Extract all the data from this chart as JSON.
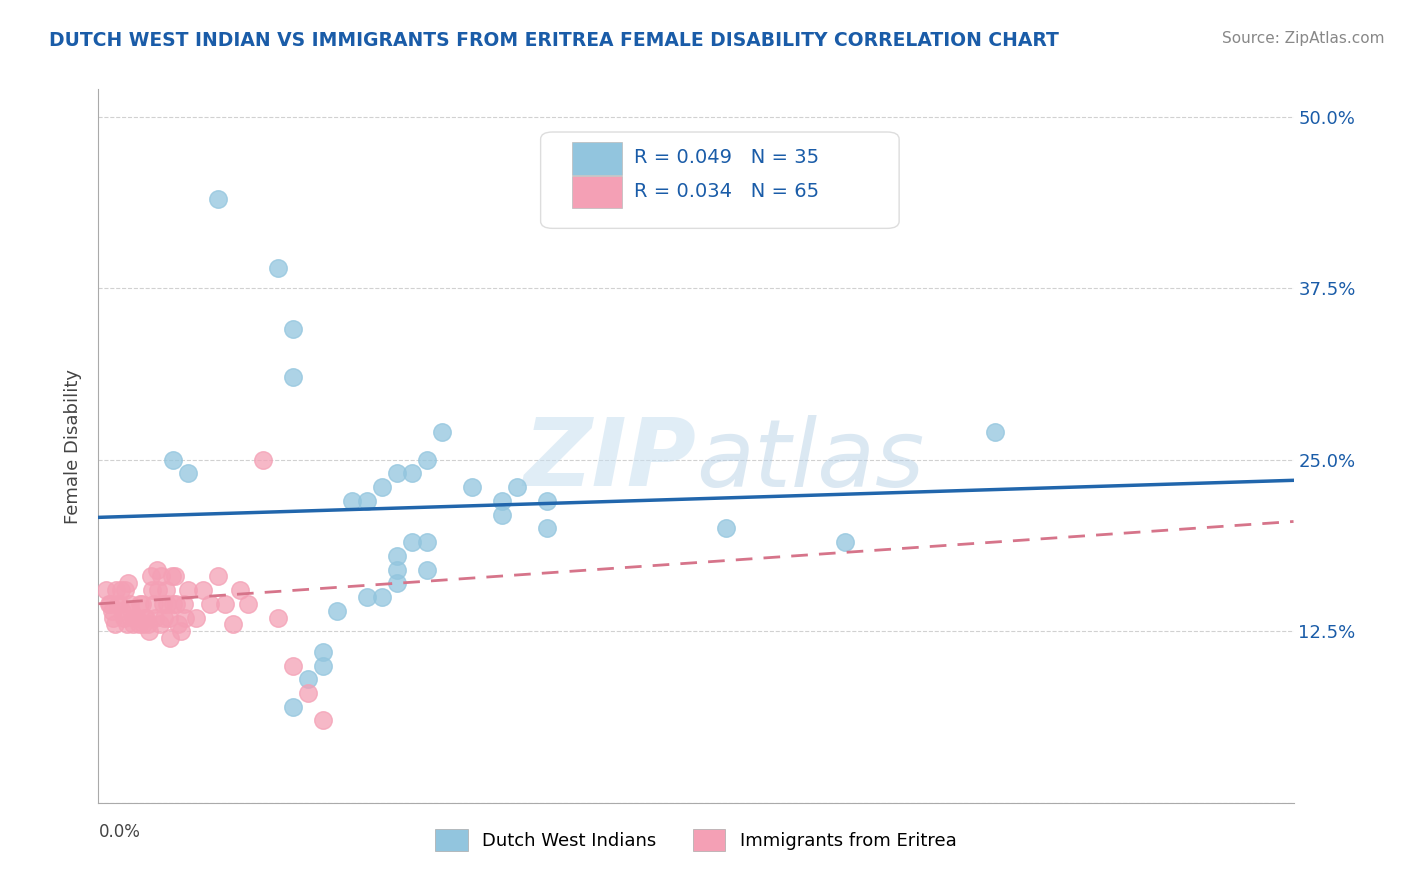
{
  "title": "DUTCH WEST INDIAN VS IMMIGRANTS FROM ERITREA FEMALE DISABILITY CORRELATION CHART",
  "source": "Source: ZipAtlas.com",
  "ylabel": "Female Disability",
  "yticks": [
    0.0,
    0.125,
    0.25,
    0.375,
    0.5
  ],
  "xmin": 0.0,
  "xmax": 0.8,
  "ymin": 0.0,
  "ymax": 0.52,
  "legend1_label": "Dutch West Indians",
  "legend2_label": "Immigrants from Eritrea",
  "R1": 0.049,
  "N1": 35,
  "R2": 0.034,
  "N2": 65,
  "blue_color": "#92c5de",
  "pink_color": "#f4a0b5",
  "blue_line_color": "#2166ac",
  "pink_line_color": "#d6748a",
  "title_color": "#1a5ca8",
  "legend_r_color": "#1a5ca8",
  "blue_scatter_x": [
    0.08,
    0.12,
    0.13,
    0.13,
    0.05,
    0.06,
    0.23,
    0.22,
    0.21,
    0.2,
    0.19,
    0.18,
    0.17,
    0.25,
    0.28,
    0.3,
    0.27,
    0.27,
    0.3,
    0.42,
    0.5,
    0.22,
    0.21,
    0.2,
    0.2,
    0.22,
    0.2,
    0.19,
    0.18,
    0.16,
    0.15,
    0.6,
    0.15,
    0.14,
    0.13
  ],
  "blue_scatter_y": [
    0.44,
    0.39,
    0.345,
    0.31,
    0.25,
    0.24,
    0.27,
    0.25,
    0.24,
    0.24,
    0.23,
    0.22,
    0.22,
    0.23,
    0.23,
    0.22,
    0.22,
    0.21,
    0.2,
    0.2,
    0.19,
    0.19,
    0.19,
    0.18,
    0.17,
    0.17,
    0.16,
    0.15,
    0.15,
    0.14,
    0.11,
    0.27,
    0.1,
    0.09,
    0.07
  ],
  "pink_scatter_x": [
    0.005,
    0.007,
    0.008,
    0.009,
    0.01,
    0.011,
    0.012,
    0.013,
    0.014,
    0.015,
    0.016,
    0.017,
    0.018,
    0.019,
    0.02,
    0.021,
    0.022,
    0.023,
    0.024,
    0.025,
    0.026,
    0.027,
    0.028,
    0.029,
    0.03,
    0.031,
    0.032,
    0.033,
    0.034,
    0.035,
    0.036,
    0.037,
    0.038,
    0.039,
    0.04,
    0.041,
    0.042,
    0.043,
    0.044,
    0.045,
    0.046,
    0.047,
    0.048,
    0.049,
    0.05,
    0.051,
    0.052,
    0.053,
    0.055,
    0.057,
    0.058,
    0.06,
    0.065,
    0.07,
    0.075,
    0.08,
    0.085,
    0.09,
    0.095,
    0.1,
    0.11,
    0.12,
    0.13,
    0.14,
    0.15
  ],
  "pink_scatter_y": [
    0.155,
    0.145,
    0.145,
    0.14,
    0.135,
    0.13,
    0.155,
    0.145,
    0.145,
    0.155,
    0.14,
    0.135,
    0.155,
    0.13,
    0.16,
    0.145,
    0.14,
    0.13,
    0.135,
    0.135,
    0.135,
    0.13,
    0.145,
    0.145,
    0.13,
    0.135,
    0.135,
    0.13,
    0.125,
    0.165,
    0.155,
    0.145,
    0.135,
    0.17,
    0.155,
    0.13,
    0.165,
    0.145,
    0.135,
    0.155,
    0.145,
    0.135,
    0.12,
    0.165,
    0.145,
    0.165,
    0.145,
    0.13,
    0.125,
    0.145,
    0.135,
    0.155,
    0.135,
    0.155,
    0.145,
    0.165,
    0.145,
    0.13,
    0.155,
    0.145,
    0.25,
    0.135,
    0.1,
    0.08,
    0.06
  ]
}
